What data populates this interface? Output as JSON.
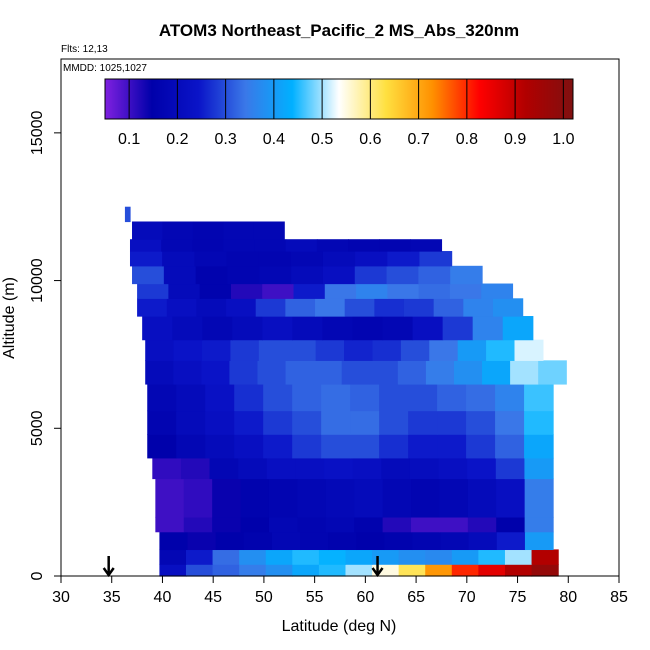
{
  "chart_data": {
    "type": "heatmap",
    "title": "ATOM3 Northeast_Pacific_2 MS_Abs_320nm",
    "flights_label": "Flts: 12,13",
    "dates_label": "MMDD: 1025,1027",
    "xlabel": "Latitude (deg N)",
    "ylabel": "Altitude (m)",
    "xlim": [
      30,
      85
    ],
    "ylim": [
      0,
      17500
    ],
    "x_ticks": [
      "30",
      "35",
      "40",
      "45",
      "50",
      "55",
      "60",
      "65",
      "70",
      "75",
      "80",
      "85"
    ],
    "y_ticks": [
      "0",
      "5000",
      "10000",
      "15000"
    ],
    "colorbar": {
      "ticks": [
        "0.1",
        "0.2",
        "0.3",
        "0.4",
        "0.5",
        "0.6",
        "0.7",
        "0.8",
        "0.9",
        "1.0"
      ],
      "range": [
        0.05,
        1.02
      ],
      "colors": [
        "#7f20e0",
        "#0000aa",
        "#0a14c8",
        "#3a78e8",
        "#00b0ff",
        "#ffffff",
        "#ffe040",
        "#ff9000",
        "#ff0000",
        "#b00000",
        "#801010"
      ]
    },
    "arrows": [
      {
        "latitude": 34.7,
        "label": "arrow"
      },
      {
        "latitude": 61.2,
        "label": "arrow"
      }
    ],
    "bands": [
      {
        "alt_min": 0,
        "alt_max": 400,
        "lat_start": 39.7,
        "lat_end": 79,
        "values": [
          0.22,
          0.3,
          0.32,
          0.35,
          0.38,
          0.42,
          0.45,
          0.5,
          0.55,
          0.62,
          0.72,
          0.8,
          0.86,
          0.92,
          0.98
        ]
      },
      {
        "alt_min": 400,
        "alt_max": 900,
        "lat_start": 39.7,
        "lat_end": 79,
        "values": [
          0.18,
          0.25,
          0.33,
          0.38,
          0.42,
          0.45,
          0.44,
          0.42,
          0.4,
          0.38,
          0.37,
          0.4,
          0.45,
          0.5,
          0.92
        ]
      },
      {
        "alt_min": 900,
        "alt_max": 1500,
        "lat_start": 39.7,
        "lat_end": 78.5,
        "values": [
          0.15,
          0.14,
          0.15,
          0.16,
          0.18,
          0.17,
          0.16,
          0.15,
          0.16,
          0.17,
          0.18,
          0.2,
          0.25,
          0.4
        ]
      },
      {
        "alt_min": 1500,
        "alt_max": 2000,
        "lat_start": 39.3,
        "lat_end": 78.5,
        "values": [
          0.1,
          0.12,
          0.14,
          0.15,
          0.18,
          0.17,
          0.18,
          0.16,
          0.12,
          0.1,
          0.1,
          0.12,
          0.15,
          0.35
        ]
      },
      {
        "alt_min": 2000,
        "alt_max": 3300,
        "lat_start": 39.3,
        "lat_end": 78.5,
        "values": [
          0.1,
          0.11,
          0.14,
          0.16,
          0.17,
          0.18,
          0.19,
          0.2,
          0.18,
          0.17,
          0.18,
          0.2,
          0.22,
          0.35
        ]
      },
      {
        "alt_min": 3300,
        "alt_max": 4000,
        "lat_start": 39,
        "lat_end": 78.5,
        "values": [
          0.11,
          0.12,
          0.18,
          0.2,
          0.22,
          0.22,
          0.23,
          0.22,
          0.2,
          0.21,
          0.22,
          0.24,
          0.28,
          0.4
        ]
      },
      {
        "alt_min": 4000,
        "alt_max": 4800,
        "lat_start": 38.5,
        "lat_end": 78.5,
        "values": [
          0.15,
          0.18,
          0.2,
          0.22,
          0.25,
          0.28,
          0.3,
          0.3,
          0.27,
          0.25,
          0.25,
          0.28,
          0.32,
          0.42
        ]
      },
      {
        "alt_min": 4800,
        "alt_max": 5600,
        "lat_start": 38.5,
        "lat_end": 78.5,
        "values": [
          0.17,
          0.2,
          0.22,
          0.25,
          0.28,
          0.3,
          0.33,
          0.33,
          0.3,
          0.28,
          0.28,
          0.3,
          0.34,
          0.45
        ]
      },
      {
        "alt_min": 5600,
        "alt_max": 6500,
        "lat_start": 38.5,
        "lat_end": 78.5,
        "values": [
          0.18,
          0.2,
          0.23,
          0.27,
          0.3,
          0.32,
          0.33,
          0.32,
          0.3,
          0.3,
          0.32,
          0.33,
          0.36,
          0.46
        ]
      },
      {
        "alt_min": 6500,
        "alt_max": 7300,
        "lat_start": 38.3,
        "lat_end": 79.8,
        "values": [
          0.2,
          0.22,
          0.24,
          0.28,
          0.3,
          0.32,
          0.32,
          0.3,
          0.3,
          0.32,
          0.35,
          0.38,
          0.42,
          0.5,
          0.48
        ]
      },
      {
        "alt_min": 7300,
        "alt_max": 8000,
        "lat_start": 38.3,
        "lat_end": 77.5,
        "values": [
          0.22,
          0.24,
          0.25,
          0.28,
          0.3,
          0.3,
          0.28,
          0.26,
          0.27,
          0.3,
          0.34,
          0.4,
          0.45,
          0.52
        ]
      },
      {
        "alt_min": 8000,
        "alt_max": 8800,
        "lat_start": 38,
        "lat_end": 76.5,
        "values": [
          0.22,
          0.2,
          0.18,
          0.2,
          0.22,
          0.2,
          0.18,
          0.17,
          0.18,
          0.22,
          0.28,
          0.36,
          0.42
        ]
      },
      {
        "alt_min": 8800,
        "alt_max": 9400,
        "lat_start": 37.5,
        "lat_end": 75.5,
        "values": [
          0.25,
          0.22,
          0.2,
          0.22,
          0.28,
          0.32,
          0.34,
          0.3,
          0.27,
          0.28,
          0.32,
          0.36,
          0.38
        ]
      },
      {
        "alt_min": 9400,
        "alt_max": 9900,
        "lat_start": 37.5,
        "lat_end": 74.5,
        "values": [
          0.28,
          0.2,
          0.16,
          0.12,
          0.1,
          0.25,
          0.34,
          0.36,
          0.34,
          0.33,
          0.34,
          0.36
        ]
      },
      {
        "alt_min": 9900,
        "alt_max": 10500,
        "lat_start": 37,
        "lat_end": 71.5,
        "values": [
          0.3,
          0.2,
          0.16,
          0.17,
          0.18,
          0.2,
          0.22,
          0.28,
          0.3,
          0.32,
          0.35
        ]
      },
      {
        "alt_min": 10500,
        "alt_max": 11000,
        "lat_start": 36.8,
        "lat_end": 68.5,
        "values": [
          0.25,
          0.2,
          0.18,
          0.17,
          0.17,
          0.18,
          0.2,
          0.22,
          0.25,
          0.28
        ]
      },
      {
        "alt_min": 11000,
        "alt_max": 11400,
        "lat_start": 36.8,
        "lat_end": 67.5,
        "values": [
          0.22,
          0.18,
          0.17,
          0.18,
          0.18,
          0.2,
          0.18,
          0.17,
          0.17,
          0.18
        ]
      },
      {
        "alt_min": 11400,
        "alt_max": 12000,
        "lat_start": 37,
        "lat_end": 52,
        "values": [
          0.2,
          0.18,
          0.17,
          0.18,
          0.18
        ]
      },
      {
        "alt_min": 12000,
        "alt_max": 12500,
        "lat_start": 36.3,
        "lat_end": 36.8,
        "values": [
          0.3
        ]
      }
    ]
  }
}
